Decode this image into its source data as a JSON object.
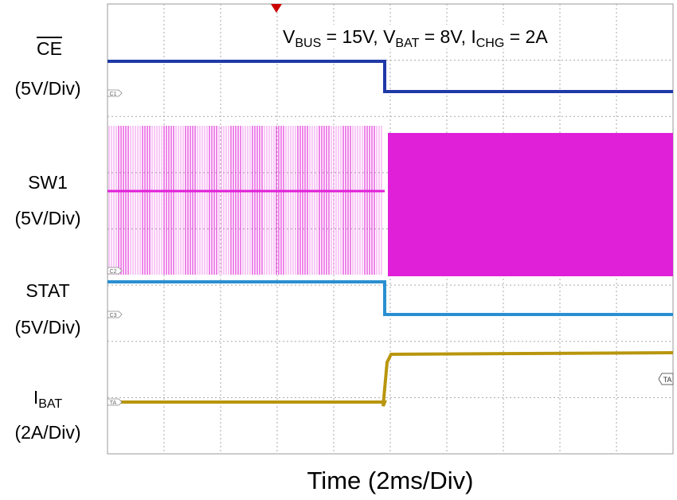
{
  "chart_data": {
    "type": "line",
    "title": "",
    "xlabel": "Time (2ms/Div)",
    "grid": true,
    "x_divisions": 10,
    "y_divisions": 8,
    "conditions": {
      "vbus_label": "V",
      "vbus_sub": "BUS",
      "vbus_value": " = 15V, ",
      "vbat_label": "V",
      "vbat_sub": "BAT",
      "vbat_value": " = 8V, ",
      "ichg_label": "I",
      "ichg_sub": "CHG",
      "ichg_value": " = 2A"
    },
    "trigger_division": 5,
    "series": [
      {
        "name": "CE",
        "scale": "(5V/Div)",
        "color": "#1f3aa6",
        "marker": "C1",
        "description_points": [
          [
            0,
            5.0
          ],
          [
            5.0,
            5.0
          ],
          [
            5.0,
            0.0
          ],
          [
            10,
            0.0
          ]
        ]
      },
      {
        "name": "SW1",
        "scale": "(5V/Div)",
        "color": "#e020d8",
        "marker": "C2",
        "envelope": [
          [
            0,
            0,
            15
          ],
          [
            5.0,
            0,
            15
          ],
          [
            5.0,
            0,
            15
          ],
          [
            10,
            0,
            15
          ]
        ]
      },
      {
        "name": "STAT",
        "scale": "(5V/Div)",
        "color": "#2a8fd0",
        "marker": "C3",
        "description_points": [
          [
            0,
            5.0
          ],
          [
            5.0,
            5.0
          ],
          [
            5.0,
            0.0
          ],
          [
            10,
            0.0
          ]
        ]
      },
      {
        "name": "BAT",
        "name_prefix": "I",
        "scale": "(2A/Div)",
        "color": "#b8960e",
        "marker": "TA",
        "description_points": [
          [
            0,
            0.0
          ],
          [
            5.0,
            0.0
          ],
          [
            5.0,
            2.0
          ],
          [
            10,
            2.0
          ]
        ]
      }
    ]
  }
}
